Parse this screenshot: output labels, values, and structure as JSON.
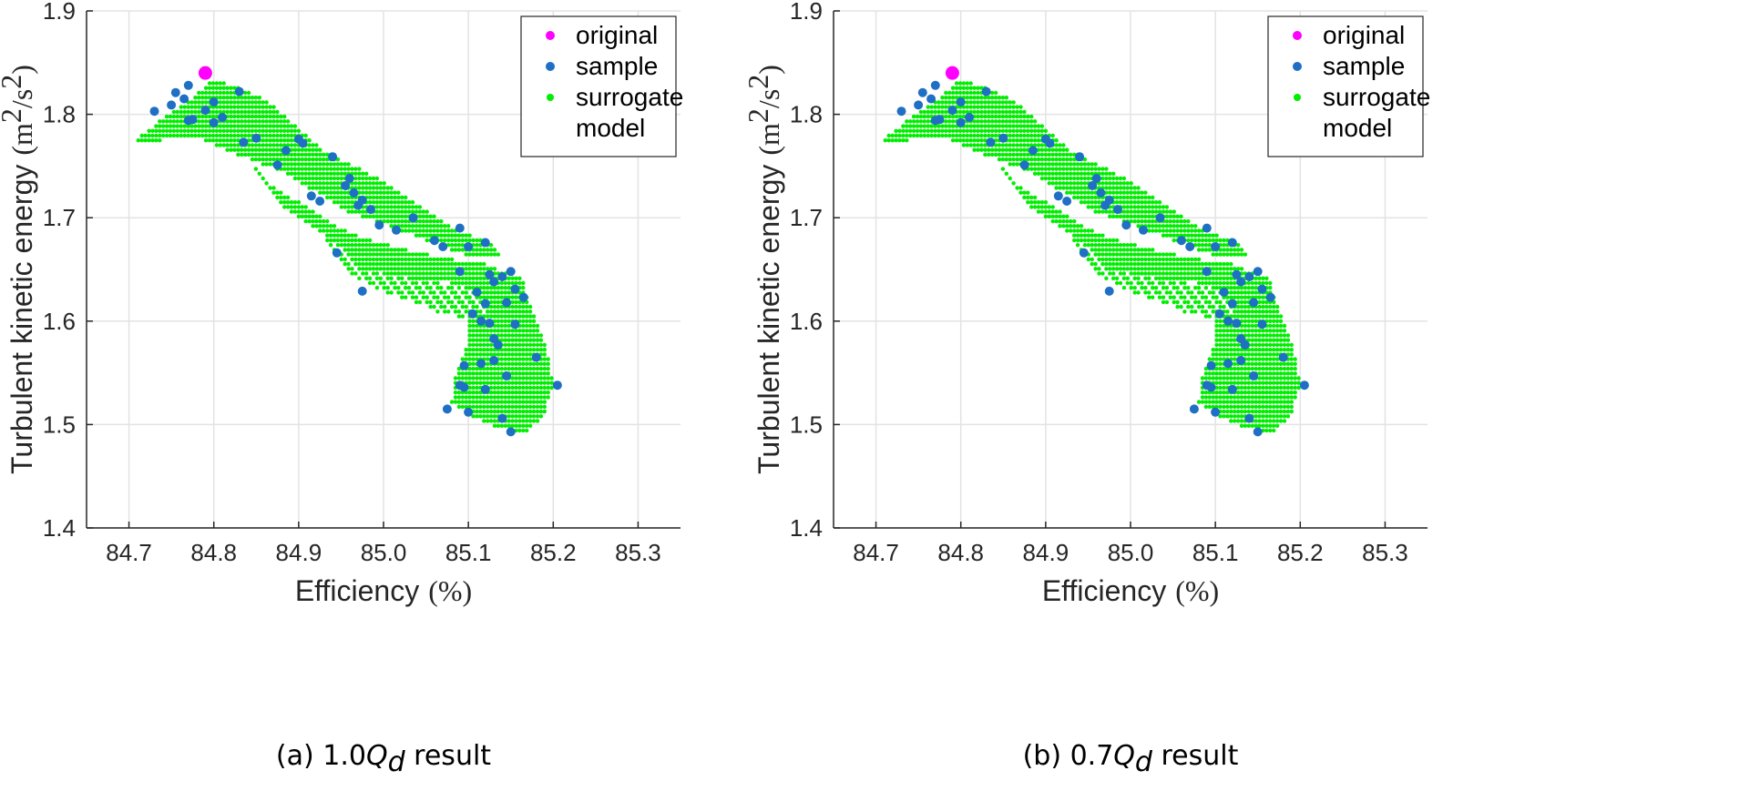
{
  "colors": {
    "original": "#ff00ff",
    "sample": "#1f6fc4",
    "surrogate": "#00ee00",
    "grid": "#e3e3e3",
    "axis": "#262626"
  },
  "chart_data": [
    {
      "type": "scatter",
      "caption_prefix": "(a) 1.0",
      "caption_var": "Q",
      "caption_sub": "d",
      "caption_suffix": " result",
      "xlabel": "Efficiency",
      "xunit": "(%)",
      "ylabel": "Turbulent kinetic energy",
      "yunit_main": "(m",
      "yunit_sup1": "2",
      "yunit_mid": "/s",
      "yunit_sup2": "2",
      "yunit_end": ")",
      "xlim": [
        84.65,
        85.35
      ],
      "ylim": [
        1.4,
        1.9
      ],
      "xticks": [
        "84.7",
        "84.8",
        "84.9",
        "85.0",
        "85.1",
        "85.2",
        "85.3"
      ],
      "yticks": [
        "1.4",
        "1.5",
        "1.6",
        "1.7",
        "1.8",
        "1.9"
      ],
      "grid": true,
      "legend_position": "top-right",
      "legend": [
        "original",
        "sample",
        "surrogate",
        "model"
      ],
      "series": [
        {
          "name": "original",
          "points": [
            [
              84.79,
              1.84
            ]
          ]
        },
        {
          "name": "sample",
          "points": [
            [
              84.73,
              1.803
            ],
            [
              84.75,
              1.809
            ],
            [
              84.755,
              1.821
            ],
            [
              84.765,
              1.815
            ],
            [
              84.77,
              1.828
            ],
            [
              84.775,
              1.795
            ],
            [
              84.77,
              1.794
            ],
            [
              84.79,
              1.804
            ],
            [
              84.8,
              1.812
            ],
            [
              84.8,
              1.792
            ],
            [
              84.81,
              1.797
            ],
            [
              84.83,
              1.822
            ],
            [
              84.835,
              1.773
            ],
            [
              84.85,
              1.777
            ],
            [
              84.875,
              1.751
            ],
            [
              84.885,
              1.765
            ],
            [
              84.9,
              1.776
            ],
            [
              84.905,
              1.772
            ],
            [
              84.915,
              1.721
            ],
            [
              84.925,
              1.716
            ],
            [
              84.94,
              1.759
            ],
            [
              84.955,
              1.731
            ],
            [
              84.96,
              1.738
            ],
            [
              84.965,
              1.724
            ],
            [
              84.97,
              1.712
            ],
            [
              84.975,
              1.717
            ],
            [
              84.985,
              1.708
            ],
            [
              84.995,
              1.693
            ],
            [
              85.015,
              1.688
            ],
            [
              85.035,
              1.7
            ],
            [
              85.06,
              1.678
            ],
            [
              85.07,
              1.672
            ],
            [
              85.09,
              1.69
            ],
            [
              85.1,
              1.672
            ],
            [
              85.12,
              1.676
            ],
            [
              84.945,
              1.666
            ],
            [
              84.975,
              1.629
            ],
            [
              85.09,
              1.648
            ],
            [
              85.095,
              1.557
            ],
            [
              85.09,
              1.538
            ],
            [
              85.095,
              1.536
            ],
            [
              85.075,
              1.515
            ],
            [
              85.1,
              1.512
            ],
            [
              85.115,
              1.559
            ],
            [
              85.12,
              1.534
            ],
            [
              85.125,
              1.645
            ],
            [
              85.13,
              1.638
            ],
            [
              85.12,
              1.617
            ],
            [
              85.115,
              1.6
            ],
            [
              85.125,
              1.598
            ],
            [
              85.13,
              1.583
            ],
            [
              85.135,
              1.577
            ],
            [
              85.13,
              1.562
            ],
            [
              85.145,
              1.547
            ],
            [
              85.14,
              1.506
            ],
            [
              85.15,
              1.493
            ],
            [
              85.155,
              1.597
            ],
            [
              85.145,
              1.618
            ],
            [
              85.155,
              1.631
            ],
            [
              85.165,
              1.623
            ],
            [
              85.15,
              1.648
            ],
            [
              85.14,
              1.643
            ],
            [
              85.18,
              1.565
            ],
            [
              85.205,
              1.538
            ],
            [
              85.11,
              1.628
            ],
            [
              85.105,
              1.607
            ]
          ]
        }
      ]
    },
    {
      "type": "scatter",
      "caption_prefix": "(b) 0.7",
      "caption_var": "Q",
      "caption_sub": "d",
      "caption_suffix": " result",
      "xlabel": "Efficiency",
      "xunit": "(%)",
      "ylabel": "Turbulent kinetic energy",
      "yunit_main": "(m",
      "yunit_sup1": "2",
      "yunit_mid": "/s",
      "yunit_sup2": "2",
      "yunit_end": ")",
      "xlim": [
        84.65,
        85.35
      ],
      "ylim": [
        1.4,
        1.9
      ],
      "xticks": [
        "84.7",
        "84.8",
        "84.9",
        "85.0",
        "85.1",
        "85.2",
        "85.3"
      ],
      "yticks": [
        "1.4",
        "1.5",
        "1.6",
        "1.7",
        "1.8",
        "1.9"
      ],
      "grid": true,
      "legend_position": "top-right",
      "legend": [
        "original",
        "sample",
        "surrogate",
        "model"
      ],
      "series": [
        {
          "name": "original",
          "points": [
            [
              84.79,
              1.84
            ]
          ]
        },
        {
          "name": "sample",
          "points": [
            [
              84.73,
              1.803
            ],
            [
              84.75,
              1.809
            ],
            [
              84.755,
              1.821
            ],
            [
              84.765,
              1.815
            ],
            [
              84.77,
              1.828
            ],
            [
              84.775,
              1.795
            ],
            [
              84.77,
              1.794
            ],
            [
              84.79,
              1.804
            ],
            [
              84.8,
              1.812
            ],
            [
              84.8,
              1.792
            ],
            [
              84.81,
              1.797
            ],
            [
              84.83,
              1.822
            ],
            [
              84.835,
              1.773
            ],
            [
              84.85,
              1.777
            ],
            [
              84.875,
              1.751
            ],
            [
              84.885,
              1.765
            ],
            [
              84.9,
              1.776
            ],
            [
              84.905,
              1.772
            ],
            [
              84.915,
              1.721
            ],
            [
              84.925,
              1.716
            ],
            [
              84.94,
              1.759
            ],
            [
              84.955,
              1.731
            ],
            [
              84.96,
              1.738
            ],
            [
              84.965,
              1.724
            ],
            [
              84.97,
              1.712
            ],
            [
              84.975,
              1.717
            ],
            [
              84.985,
              1.708
            ],
            [
              84.995,
              1.693
            ],
            [
              85.015,
              1.688
            ],
            [
              85.035,
              1.7
            ],
            [
              85.06,
              1.678
            ],
            [
              85.07,
              1.672
            ],
            [
              85.09,
              1.69
            ],
            [
              85.1,
              1.672
            ],
            [
              85.12,
              1.676
            ],
            [
              84.945,
              1.666
            ],
            [
              84.975,
              1.629
            ],
            [
              85.09,
              1.648
            ],
            [
              85.095,
              1.557
            ],
            [
              85.09,
              1.538
            ],
            [
              85.095,
              1.536
            ],
            [
              85.075,
              1.515
            ],
            [
              85.1,
              1.512
            ],
            [
              85.115,
              1.559
            ],
            [
              85.12,
              1.534
            ],
            [
              85.125,
              1.645
            ],
            [
              85.13,
              1.638
            ],
            [
              85.12,
              1.617
            ],
            [
              85.115,
              1.6
            ],
            [
              85.125,
              1.598
            ],
            [
              85.13,
              1.583
            ],
            [
              85.135,
              1.577
            ],
            [
              85.13,
              1.562
            ],
            [
              85.145,
              1.547
            ],
            [
              85.14,
              1.506
            ],
            [
              85.15,
              1.493
            ],
            [
              85.155,
              1.597
            ],
            [
              85.145,
              1.618
            ],
            [
              85.155,
              1.631
            ],
            [
              85.165,
              1.623
            ],
            [
              85.15,
              1.648
            ],
            [
              85.14,
              1.643
            ],
            [
              85.18,
              1.565
            ],
            [
              85.205,
              1.538
            ],
            [
              85.11,
              1.628
            ],
            [
              85.105,
              1.607
            ]
          ]
        },
        {
          "name": "surrogate",
          "regions": [
            {
              "polygon": [
                [
                  84.7,
                  1.77
                ],
                [
                  84.73,
                  1.79
                ],
                [
                  84.775,
                  1.815
                ],
                [
                  84.8,
                  1.835
                ],
                [
                  84.86,
                  1.815
                ],
                [
                  84.93,
                  1.765
                ],
                [
                  85.0,
                  1.735
                ],
                [
                  85.08,
                  1.69
                ],
                [
                  85.13,
                  1.675
                ],
                [
                  85.14,
                  1.66
                ],
                [
                  85.09,
                  1.665
                ],
                [
                  85.03,
                  1.685
                ],
                [
                  84.96,
                  1.705
                ],
                [
                  84.88,
                  1.745
                ],
                [
                  84.83,
                  1.76
                ],
                [
                  84.79,
                  1.775
                ],
                [
                  84.74,
                  1.775
                ]
              ],
              "density": 1
            },
            {
              "polygon": [
                [
                  84.83,
                  1.765
                ],
                [
                  84.87,
                  1.73
                ],
                [
                  84.92,
                  1.705
                ],
                [
                  84.96,
                  1.685
                ],
                [
                  85.02,
                  1.67
                ],
                [
                  85.08,
                  1.66
                ],
                [
                  85.12,
                  1.655
                ],
                [
                  85.1,
                  1.635
                ],
                [
                  85.04,
                  1.64
                ],
                [
                  84.98,
                  1.65
                ],
                [
                  84.92,
                  1.69
                ],
                [
                  84.88,
                  1.71
                ],
                [
                  84.85,
                  1.745
                ]
              ],
              "density": 1
            },
            {
              "polygon": [
                [
                  84.91,
                  1.7
                ],
                [
                  84.935,
                  1.67
                ],
                [
                  84.96,
                  1.645
                ],
                [
                  85.01,
                  1.625
                ],
                [
                  85.06,
                  1.61
                ],
                [
                  85.1,
                  1.6
                ],
                [
                  85.12,
                  1.61
                ],
                [
                  85.1,
                  1.63
                ],
                [
                  85.05,
                  1.64
                ],
                [
                  85.0,
                  1.65
                ],
                [
                  84.95,
                  1.665
                ],
                [
                  84.92,
                  1.69
                ]
              ],
              "density": 0.7
            },
            {
              "polygon": [
                [
                  85.095,
                  1.655
                ],
                [
                  85.12,
                  1.655
                ],
                [
                  85.165,
                  1.64
                ],
                [
                  85.17,
                  1.62
                ],
                [
                  85.19,
                  1.58
                ],
                [
                  85.2,
                  1.54
                ],
                [
                  85.19,
                  1.51
                ],
                [
                  85.165,
                  1.49
                ],
                [
                  85.14,
                  1.495
                ],
                [
                  85.1,
                  1.51
                ],
                [
                  85.08,
                  1.52
                ],
                [
                  85.085,
                  1.55
                ],
                [
                  85.1,
                  1.58
                ],
                [
                  85.095,
                  1.62
                ]
              ],
              "density": 1
            }
          ]
        }
      ]
    }
  ]
}
